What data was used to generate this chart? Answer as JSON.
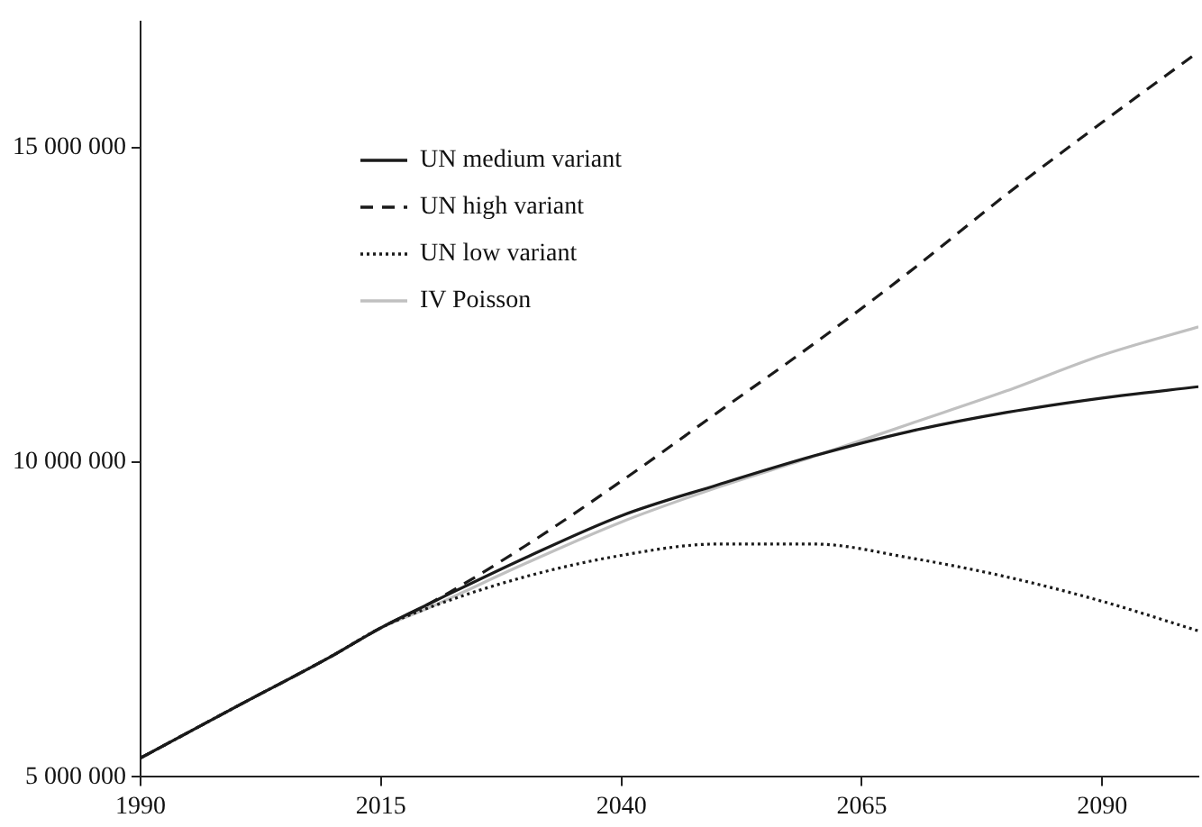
{
  "chart_data": {
    "type": "line",
    "x": [
      1990,
      2000,
      2010,
      2015,
      2020,
      2030,
      2040,
      2050,
      2060,
      2070,
      2080,
      2090,
      2100
    ],
    "series": [
      {
        "name": "UN medium variant",
        "color": "#1a1a1a",
        "line_style": "solid",
        "values": [
          5300000,
          6120000,
          6930000,
          7370000,
          7750000,
          8480000,
          9150000,
          9640000,
          10100000,
          10490000,
          10790000,
          11020000,
          11200000
        ]
      },
      {
        "name": "UN high variant",
        "color": "#1a1a1a",
        "line_style": "dashed",
        "values": [
          5300000,
          6120000,
          6930000,
          7370000,
          7750000,
          8670000,
          9700000,
          10790000,
          11880000,
          13030000,
          14250000,
          15400000,
          16520000
        ]
      },
      {
        "name": "UN low variant",
        "color": "#1a1a1a",
        "line_style": "dotted",
        "values": [
          5300000,
          6120000,
          6930000,
          7370000,
          7690000,
          8180000,
          8520000,
          8700000,
          8700000,
          8480000,
          8180000,
          7790000,
          7320000
        ]
      },
      {
        "name": "IV Poisson",
        "color": "#c0c0c0",
        "line_style": "solid",
        "values": [
          5300000,
          6120000,
          6930000,
          7370000,
          7690000,
          8390000,
          9050000,
          9600000,
          10090000,
          10610000,
          11130000,
          11700000,
          12150000
        ]
      }
    ],
    "xlim": [
      1990,
      2100
    ],
    "xticks": [
      1990,
      2015,
      2040,
      2065,
      2090
    ],
    "ylim": [
      5000000,
      17000000
    ],
    "yticks": [
      {
        "value": 5000000,
        "label": "5 000 000"
      },
      {
        "value": 10000000,
        "label": "10 000 000"
      },
      {
        "value": 15000000,
        "label": "15 000 000"
      }
    ],
    "grid": false,
    "legend": "top left",
    "marker": "none"
  }
}
